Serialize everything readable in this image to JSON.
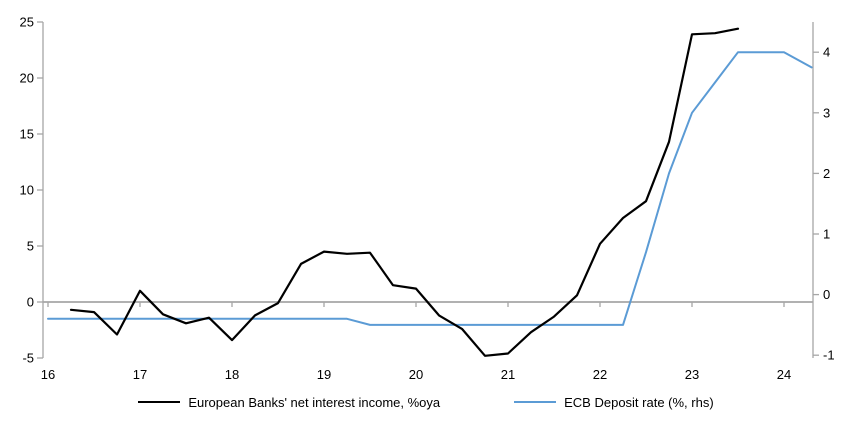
{
  "chart_data": {
    "type": "line",
    "title": "",
    "background": "#FFFFFF",
    "x_axis": {
      "tick_labels": [
        "16",
        "17",
        "18",
        "19",
        "20",
        "21",
        "22",
        "23",
        "24"
      ],
      "tick_values": [
        16,
        17,
        18,
        19,
        20,
        21,
        22,
        23,
        24
      ],
      "range": [
        16,
        24.37
      ],
      "axis_drawn_at": "left-axis-zero"
    },
    "left_axis": {
      "tick_labels": [
        "-5",
        "0",
        "5",
        "10",
        "15",
        "20",
        "25"
      ],
      "tick_values": [
        -5,
        0,
        5,
        10,
        15,
        20,
        25
      ],
      "range": [
        -5,
        25
      ]
    },
    "right_axis": {
      "tick_labels": [
        "-1",
        "0",
        "1",
        "2",
        "3",
        "4"
      ],
      "tick_values": [
        -1,
        0,
        1,
        2,
        3,
        4
      ],
      "range": [
        -1.07,
        4.5
      ]
    },
    "grid": "horizontal-zero-line-only",
    "legend_position": "bottom-center",
    "series": [
      {
        "name": "European Banks' net interest income, %oya",
        "axis": "left",
        "color": "#000000",
        "x": [
          16.25,
          16.5,
          16.75,
          17.0,
          17.25,
          17.5,
          17.75,
          18.0,
          18.25,
          18.5,
          18.75,
          19.0,
          19.25,
          19.5,
          19.75,
          20.0,
          20.25,
          20.5,
          20.75,
          21.0,
          21.25,
          21.5,
          21.75,
          22.0,
          22.25,
          22.5,
          22.75,
          23.0,
          23.25,
          23.5
        ],
        "values": [
          -0.7,
          -0.9,
          -2.9,
          1.0,
          -1.1,
          -1.9,
          -1.4,
          -3.4,
          -1.2,
          -0.1,
          3.4,
          4.5,
          4.3,
          4.4,
          1.5,
          1.2,
          -1.2,
          -2.4,
          -4.8,
          -4.6,
          -2.7,
          -1.3,
          0.6,
          5.2,
          7.5,
          9.0,
          14.3,
          23.9,
          24.0,
          24.4
        ]
      },
      {
        "name": "ECB Deposit rate (%, rhs)",
        "axis": "right",
        "color": "#5B9BD5",
        "x": [
          16.0,
          19.25,
          19.5,
          22.25,
          22.5,
          22.75,
          23.0,
          23.25,
          23.5,
          23.75,
          24.0,
          24.3
        ],
        "values": [
          -0.4,
          -0.4,
          -0.5,
          -0.5,
          0.7,
          2.0,
          3.0,
          3.5,
          4.0,
          4.0,
          4.0,
          3.75
        ]
      }
    ]
  },
  "colors": {
    "axis": "#A6A6A6",
    "text": "#000000",
    "background": "#FFFFFF"
  }
}
